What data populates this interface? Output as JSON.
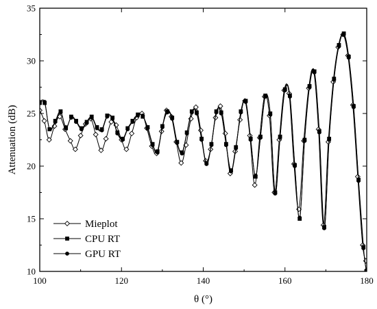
{
  "chart_data": {
    "type": "line",
    "title": "",
    "xlabel": "θ (°)",
    "ylabel": "Attenuation (dB)",
    "xlim": [
      100,
      180
    ],
    "ylim": [
      10,
      35
    ],
    "xticks": [
      100,
      120,
      140,
      160,
      180
    ],
    "yticks": [
      10,
      15,
      20,
      25,
      30,
      35
    ],
    "grid": false,
    "legend_position": "bottom-left",
    "series": [
      {
        "name": "Mieplot",
        "marker": "open-diamond",
        "color": "#000000",
        "x": [
          100.0,
          101.1,
          102.3,
          103.6,
          104.9,
          106.2,
          107.5,
          108.7,
          110.0,
          111.2,
          112.5,
          113.7,
          115.0,
          116.2,
          117.5,
          118.7,
          120.0,
          121.2,
          122.5,
          123.7,
          125.0,
          126.2,
          127.4,
          128.6,
          129.8,
          131.0,
          132.2,
          133.4,
          134.6,
          135.8,
          137.0,
          138.2,
          139.4,
          140.6,
          141.8,
          143.0,
          144.2,
          145.4,
          146.6,
          147.8,
          149.0,
          150.2,
          151.4,
          152.6,
          153.8,
          155.0,
          156.2,
          157.4,
          158.6,
          159.8,
          161.0,
          162.2,
          163.4,
          164.6,
          165.8,
          167.0,
          168.2,
          169.4,
          170.6,
          171.8,
          173.0,
          174.2,
          175.4,
          176.6,
          177.8,
          179.0,
          179.8
        ],
        "y": [
          25.3,
          24.3,
          22.5,
          23.8,
          24.7,
          23.5,
          22.4,
          21.6,
          22.9,
          24.0,
          24.5,
          23.0,
          21.5,
          22.6,
          24.2,
          23.9,
          22.5,
          21.6,
          23.1,
          24.6,
          25.0,
          23.6,
          21.9,
          21.2,
          23.3,
          25.3,
          24.7,
          22.3,
          20.3,
          22.0,
          24.5,
          25.6,
          23.4,
          20.5,
          21.6,
          24.6,
          25.7,
          23.1,
          19.3,
          21.4,
          24.4,
          26.2,
          22.9,
          18.2,
          22.7,
          26.6,
          24.8,
          17.5,
          22.5,
          27.2,
          26.9,
          20.2,
          15.9,
          22.4,
          27.4,
          29.0,
          23.5,
          14.4,
          22.3,
          28.0,
          31.3,
          32.5,
          30.5,
          25.8,
          19.0,
          12.5,
          11.0
        ]
      },
      {
        "name": "CPU RT",
        "marker": "filled-square",
        "color": "#000000",
        "x": [
          100.0,
          101.2,
          102.4,
          103.8,
          105.1,
          106.4,
          107.7,
          108.9,
          110.2,
          111.5,
          112.7,
          114.0,
          115.2,
          116.5,
          117.8,
          119.0,
          120.3,
          121.5,
          122.7,
          124.0,
          125.2,
          126.4,
          127.6,
          128.8,
          130.0,
          131.2,
          132.4,
          133.6,
          134.8,
          136.0,
          137.2,
          138.4,
          139.6,
          140.8,
          142.0,
          143.2,
          144.4,
          145.6,
          146.8,
          148.0,
          149.2,
          150.4,
          151.6,
          152.8,
          154.0,
          155.2,
          156.4,
          157.6,
          158.8,
          160.0,
          161.2,
          162.4,
          163.6,
          164.8,
          166.0,
          167.2,
          168.4,
          169.6,
          170.8,
          172.0,
          173.2,
          174.4,
          175.6,
          176.8,
          178.0,
          179.2,
          179.9
        ],
        "y": [
          26.0,
          26.0,
          23.5,
          24.3,
          25.2,
          23.6,
          24.7,
          24.3,
          23.6,
          24.2,
          24.7,
          23.7,
          23.5,
          24.8,
          24.6,
          23.2,
          22.6,
          23.6,
          24.3,
          24.9,
          24.7,
          23.7,
          22.1,
          21.4,
          23.8,
          25.2,
          24.6,
          22.3,
          21.3,
          23.2,
          25.2,
          25.1,
          22.6,
          20.3,
          22.1,
          25.2,
          25.1,
          22.1,
          19.6,
          21.8,
          25.2,
          26.2,
          22.6,
          19.0,
          22.8,
          26.7,
          25.0,
          17.5,
          22.8,
          27.3,
          26.7,
          20.1,
          15.0,
          22.5,
          27.6,
          29.0,
          23.3,
          14.2,
          22.6,
          28.3,
          31.5,
          32.6,
          30.4,
          25.7,
          18.7,
          12.3,
          10.0
        ]
      },
      {
        "name": "GPU RT",
        "marker": "filled-circle",
        "color": "#000000",
        "x": [
          100.0,
          101.2,
          102.4,
          103.8,
          105.1,
          106.4,
          107.7,
          108.9,
          110.2,
          111.5,
          112.7,
          114.0,
          115.2,
          116.5,
          117.8,
          119.0,
          120.3,
          121.5,
          122.7,
          124.0,
          125.2,
          126.4,
          127.6,
          128.8,
          130.0,
          131.2,
          132.4,
          133.6,
          134.8,
          136.0,
          137.2,
          138.4,
          139.6,
          140.8,
          142.0,
          143.2,
          144.4,
          145.6,
          146.8,
          148.0,
          149.2,
          150.4,
          151.6,
          152.8,
          154.0,
          155.2,
          156.4,
          157.6,
          158.8,
          160.0,
          161.2,
          162.4,
          163.6,
          164.8,
          166.0,
          167.2,
          168.4,
          169.6,
          170.8,
          172.0,
          173.2,
          174.4,
          175.6,
          176.8,
          178.0,
          179.2,
          179.9
        ],
        "y": [
          26.1,
          26.1,
          23.5,
          24.2,
          25.1,
          23.7,
          24.6,
          24.2,
          23.5,
          24.1,
          24.6,
          23.6,
          23.4,
          24.7,
          24.5,
          23.1,
          22.5,
          23.5,
          24.2,
          24.8,
          24.8,
          23.6,
          22.0,
          21.3,
          23.7,
          25.1,
          24.5,
          22.2,
          21.2,
          23.1,
          25.1,
          25.0,
          22.5,
          20.2,
          22.0,
          25.1,
          25.0,
          22.0,
          19.5,
          21.7,
          25.1,
          26.1,
          22.5,
          19.1,
          22.7,
          26.6,
          24.9,
          17.4,
          22.7,
          27.2,
          26.6,
          20.0,
          15.1,
          22.4,
          27.5,
          28.9,
          23.2,
          14.1,
          22.5,
          28.2,
          31.4,
          32.5,
          30.3,
          25.6,
          18.6,
          12.2,
          10.1
        ]
      }
    ]
  }
}
